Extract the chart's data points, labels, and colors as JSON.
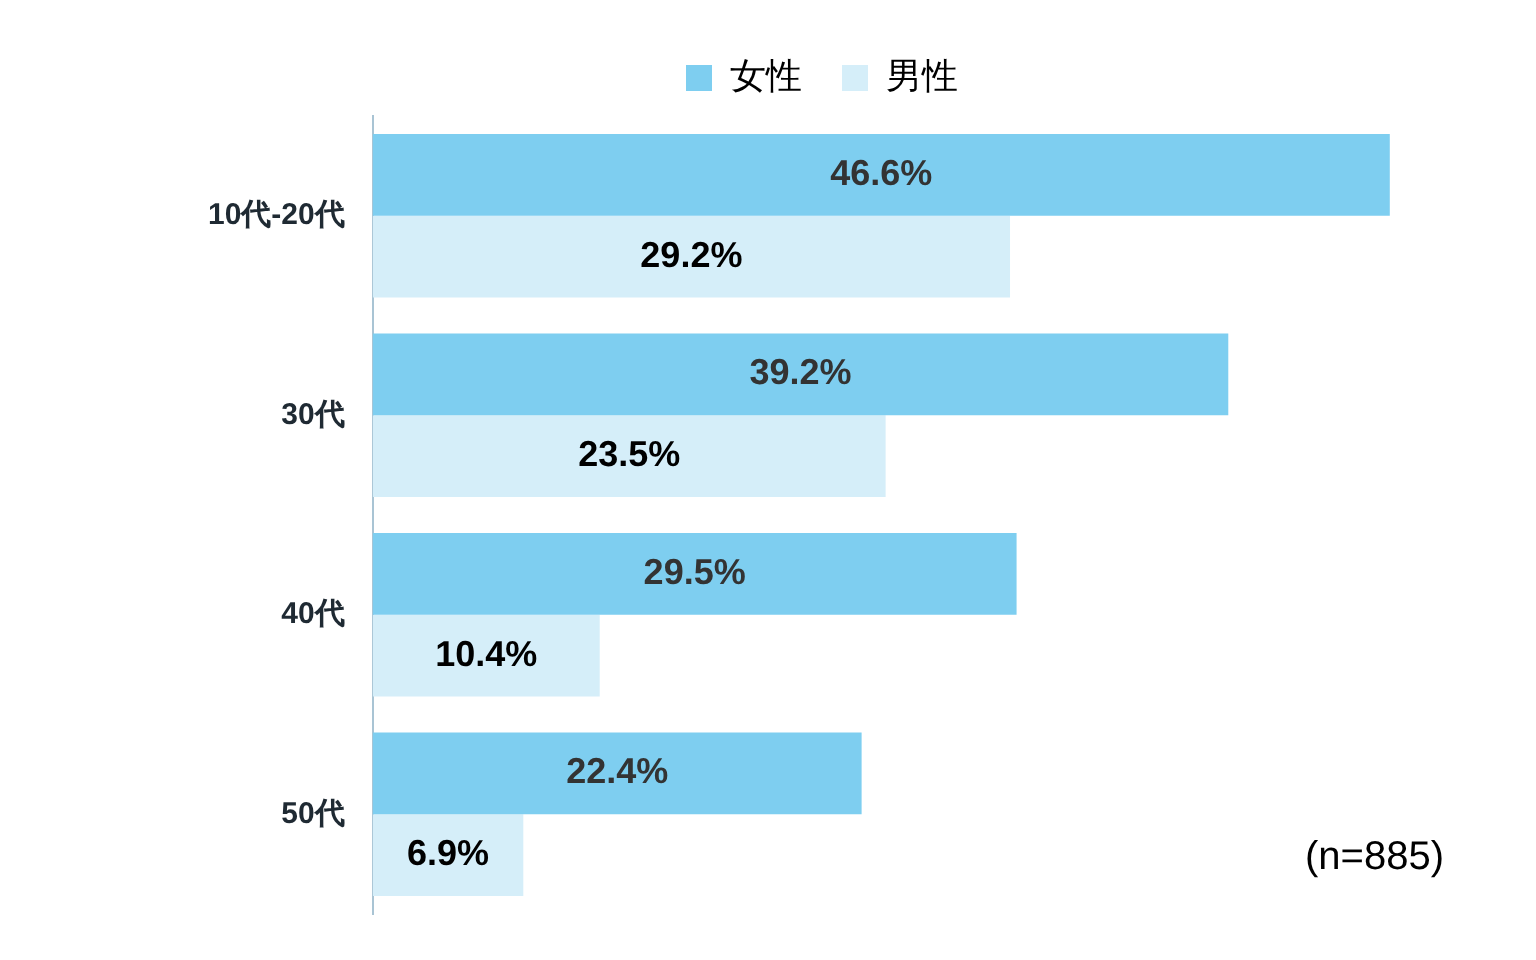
{
  "chart_data": {
    "type": "bar",
    "orientation": "horizontal",
    "categories": [
      "10代-20代",
      "30代",
      "40代",
      "50代"
    ],
    "series": [
      {
        "name": "女性",
        "color": "#7ecef0",
        "values": [
          46.6,
          39.2,
          29.5,
          22.4
        ],
        "value_labels": [
          "46.6%",
          "39.2%",
          "29.5%",
          "22.4%"
        ]
      },
      {
        "name": "男性",
        "color": "#d5eef9",
        "values": [
          29.2,
          23.5,
          10.4,
          6.9
        ],
        "value_labels": [
          "29.2%",
          "23.5%",
          "10.4%",
          "6.9%"
        ]
      }
    ],
    "legend": "top",
    "grid": false,
    "annotations": [
      "(n=885)"
    ]
  }
}
